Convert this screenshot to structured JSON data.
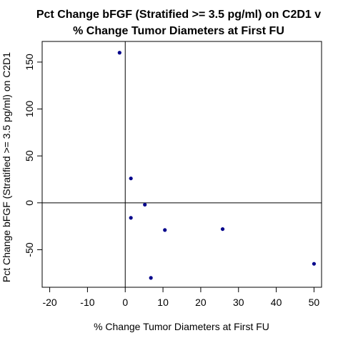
{
  "chart_data": {
    "type": "scatter",
    "title_line1": "Pct Change bFGF (Stratified >= 3.5 pg/ml) on C2D1 v",
    "title_line2": "% Change Tumor Diameters at First FU",
    "xlabel": "% Change Tumor Diameters at First FU",
    "ylabel": "Pct Change bFGF (Stratified >= 3.5 pg/ml) on C2D1",
    "xlim": [
      -22,
      52
    ],
    "ylim": [
      -90,
      172
    ],
    "x_ticks": [
      -20,
      -10,
      0,
      10,
      20,
      30,
      40,
      50
    ],
    "y_ticks": [
      -50,
      0,
      50,
      100,
      150
    ],
    "reference_lines": {
      "x": 0,
      "y": 0
    },
    "point_color": "#00008b",
    "points": [
      {
        "x": -1.5,
        "y": 160
      },
      {
        "x": 1.5,
        "y": 26
      },
      {
        "x": 5.2,
        "y": -2
      },
      {
        "x": 1.5,
        "y": -16
      },
      {
        "x": 10.5,
        "y": -29
      },
      {
        "x": 25.8,
        "y": -28
      },
      {
        "x": 6.8,
        "y": -80
      },
      {
        "x": 50.0,
        "y": -65
      }
    ]
  }
}
